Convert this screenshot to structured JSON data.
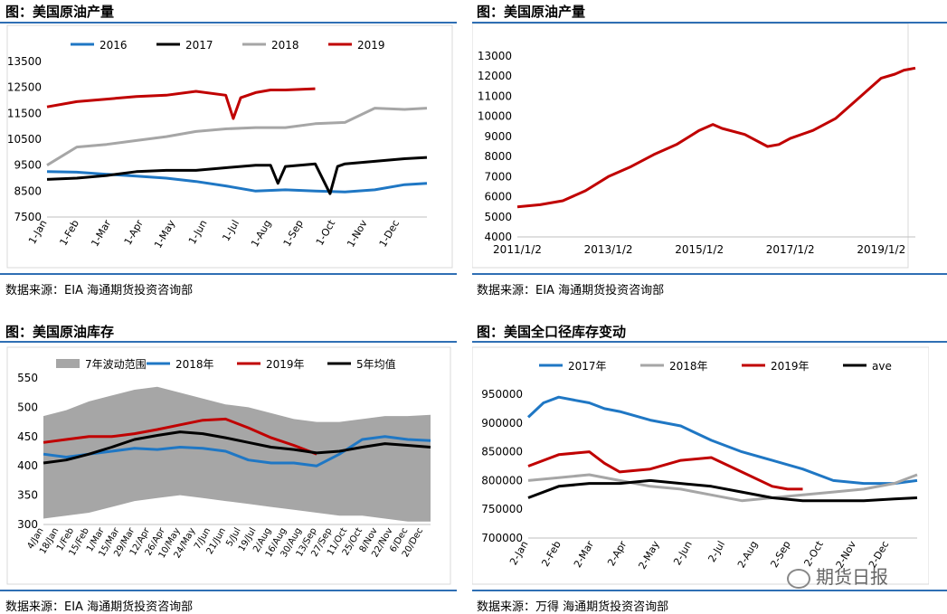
{
  "panels": [
    {
      "title": "图：美国原油产量",
      "source": "数据来源：EIA   海通期货投资咨询部"
    },
    {
      "title": "图：美国原油产量",
      "source": "数据来源：EIA   海通期货投资咨询部"
    },
    {
      "title": "图：美国原油库存",
      "source": "数据来源：EIA   海通期货投资咨询部"
    },
    {
      "title": "图：美国全口径库存变动",
      "source": "数据来源：万得   海通期货投资咨询部"
    }
  ],
  "watermark": "期货日报",
  "chart_data": [
    {
      "type": "line",
      "x_ticks": [
        "1-Jan",
        "1-Feb",
        "1-Mar",
        "1-Apr",
        "1-May",
        "1-Jun",
        "1-Jul",
        "1-Aug",
        "1-Sep",
        "1-Oct",
        "1-Nov",
        "1-Dec"
      ],
      "y_ticks": [
        "7500",
        "8500",
        "9500",
        "10500",
        "11500",
        "12500",
        "13500"
      ],
      "ylim": [
        7500,
        13500
      ],
      "legend_position": "top",
      "series": [
        {
          "name": "2016",
          "color": "#1f77c4",
          "x": [
            0,
            4,
            8,
            12,
            16,
            20,
            24,
            28,
            32,
            36,
            40,
            44,
            48,
            51
          ],
          "y": [
            9250,
            9230,
            9150,
            9080,
            9000,
            8870,
            8700,
            8500,
            8550,
            8500,
            8470,
            8550,
            8750,
            8800
          ]
        },
        {
          "name": "2017",
          "color": "#000000",
          "x": [
            0,
            4,
            8,
            12,
            16,
            20,
            24,
            28,
            30,
            31,
            32,
            36,
            38,
            39,
            40,
            44,
            48,
            51
          ],
          "y": [
            8950,
            9000,
            9100,
            9250,
            9300,
            9300,
            9400,
            9500,
            9500,
            8800,
            9450,
            9550,
            8400,
            9450,
            9550,
            9650,
            9750,
            9800
          ]
        },
        {
          "name": "2018",
          "color": "#a6a6a6",
          "x": [
            0,
            4,
            8,
            12,
            16,
            20,
            24,
            28,
            32,
            36,
            40,
            44,
            48,
            51
          ],
          "y": [
            9500,
            10200,
            10300,
            10450,
            10600,
            10800,
            10900,
            10950,
            10950,
            11100,
            11150,
            11700,
            11650,
            11700
          ]
        },
        {
          "name": "2019",
          "color": "#c00000",
          "x": [
            0,
            4,
            8,
            12,
            16,
            20,
            24,
            25,
            26,
            28,
            30,
            32,
            36
          ],
          "y": [
            11750,
            11950,
            12050,
            12150,
            12200,
            12350,
            12200,
            11300,
            12100,
            12300,
            12400,
            12400,
            12450
          ]
        }
      ]
    },
    {
      "type": "line",
      "x_ticks": [
        "2011/1/2",
        "2013/1/2",
        "2015/1/2",
        "2017/1/2",
        "2019/1/2"
      ],
      "y_ticks": [
        "4000",
        "5000",
        "6000",
        "7000",
        "8000",
        "9000",
        "10000",
        "11000",
        "12000",
        "13000"
      ],
      "ylim": [
        4000,
        13000
      ],
      "xlim": [
        2011.0,
        2019.75
      ],
      "series": [
        {
          "color": "#c00000",
          "x": [
            2011.0,
            2011.5,
            2012.0,
            2012.5,
            2013.0,
            2013.5,
            2014.0,
            2014.5,
            2015.0,
            2015.3,
            2015.5,
            2016.0,
            2016.5,
            2016.75,
            2017.0,
            2017.5,
            2018.0,
            2018.5,
            2019.0,
            2019.3,
            2019.5,
            2019.75
          ],
          "y": [
            5500,
            5600,
            5800,
            6300,
            7000,
            7500,
            8100,
            8600,
            9300,
            9600,
            9400,
            9100,
            8500,
            8600,
            8900,
            9300,
            9900,
            10900,
            11900,
            12100,
            12300,
            12400
          ]
        }
      ]
    },
    {
      "type": "area",
      "x_ticks": [
        "4/Jan",
        "18/Jan",
        "1/Feb",
        "15/Feb",
        "1/Mar",
        "15/Mar",
        "29/Mar",
        "12/Apr",
        "26/Apr",
        "10/May",
        "24/May",
        "7/Jun",
        "21/Jun",
        "5/Jul",
        "19/Jul",
        "2/Aug",
        "16/Aug",
        "30/Aug",
        "13/Sep",
        "27/Sep",
        "11/Oct",
        "25/Oct",
        "8/Nov",
        "22/Nov",
        "6/Dec",
        "20/Dec"
      ],
      "y_ticks": [
        "300",
        "350",
        "400",
        "450",
        "500",
        "550"
      ],
      "ylim": [
        300,
        550
      ],
      "legend_position": "top",
      "series": [
        {
          "name": "7年波动范围",
          "color": "#a6a6a6",
          "x": [
            0,
            3,
            6,
            9,
            12,
            15,
            18,
            21,
            24,
            27,
            30,
            33,
            36,
            39,
            42,
            45,
            48,
            51
          ],
          "upper": [
            485,
            495,
            510,
            520,
            530,
            535,
            525,
            515,
            505,
            500,
            490,
            480,
            475,
            475,
            480,
            485,
            485,
            487
          ],
          "lower": [
            310,
            315,
            320,
            330,
            340,
            345,
            350,
            345,
            340,
            335,
            330,
            325,
            320,
            315,
            315,
            310,
            305,
            305
          ]
        },
        {
          "name": "2018年",
          "color": "#1f77c4",
          "x": [
            0,
            3,
            6,
            9,
            12,
            15,
            18,
            21,
            24,
            27,
            30,
            33,
            36,
            39,
            42,
            45,
            48,
            51
          ],
          "y": [
            420,
            415,
            420,
            425,
            430,
            428,
            432,
            430,
            425,
            410,
            405,
            405,
            400,
            420,
            445,
            450,
            445,
            443
          ]
        },
        {
          "name": "2019年",
          "color": "#c00000",
          "x": [
            0,
            3,
            6,
            9,
            12,
            15,
            18,
            21,
            24,
            27,
            30,
            33,
            36
          ],
          "y": [
            440,
            445,
            450,
            450,
            455,
            462,
            470,
            478,
            480,
            465,
            448,
            435,
            420
          ]
        },
        {
          "name": "5年均值",
          "color": "#000000",
          "x": [
            0,
            3,
            6,
            9,
            12,
            15,
            18,
            21,
            24,
            27,
            30,
            33,
            36,
            39,
            42,
            45,
            48,
            51
          ],
          "y": [
            405,
            410,
            420,
            432,
            445,
            452,
            458,
            455,
            448,
            440,
            432,
            428,
            422,
            425,
            432,
            438,
            435,
            432
          ]
        }
      ]
    },
    {
      "type": "line",
      "x_ticks": [
        "2-Jan",
        "2-Feb",
        "2-Mar",
        "2-Apr",
        "2-May",
        "2-Jun",
        "2-Jul",
        "2-Aug",
        "2-Sep",
        "2-Oct",
        "2-Nov",
        "2-Dec"
      ],
      "y_ticks": [
        "700000",
        "750000",
        "800000",
        "850000",
        "900000",
        "950000"
      ],
      "ylim": [
        700000,
        950000
      ],
      "legend_position": "top",
      "series": [
        {
          "name": "2017年",
          "color": "#1f77c4",
          "x": [
            0,
            2,
            4,
            6,
            8,
            10,
            12,
            16,
            20,
            24,
            28,
            32,
            36,
            40,
            44,
            48,
            51
          ],
          "y": [
            910000,
            935000,
            945000,
            940000,
            935000,
            925000,
            920000,
            905000,
            895000,
            870000,
            850000,
            835000,
            820000,
            800000,
            795000,
            795000,
            800000
          ]
        },
        {
          "name": "2018年",
          "color": "#a6a6a6",
          "x": [
            0,
            4,
            8,
            12,
            16,
            20,
            24,
            28,
            32,
            36,
            40,
            44,
            48,
            51
          ],
          "y": [
            800000,
            805000,
            810000,
            800000,
            790000,
            785000,
            775000,
            765000,
            770000,
            775000,
            780000,
            785000,
            795000,
            810000
          ]
        },
        {
          "name": "2019年",
          "color": "#c00000",
          "x": [
            0,
            4,
            8,
            10,
            12,
            16,
            20,
            24,
            28,
            32,
            34,
            36
          ],
          "y": [
            825000,
            845000,
            850000,
            830000,
            815000,
            820000,
            835000,
            840000,
            815000,
            790000,
            785000,
            785000
          ]
        },
        {
          "name": "ave",
          "color": "#000000",
          "x": [
            0,
            4,
            8,
            12,
            16,
            20,
            24,
            28,
            32,
            36,
            40,
            44,
            48,
            51
          ],
          "y": [
            770000,
            790000,
            795000,
            795000,
            800000,
            795000,
            790000,
            780000,
            770000,
            765000,
            765000,
            765000,
            768000,
            770000
          ]
        }
      ]
    }
  ]
}
